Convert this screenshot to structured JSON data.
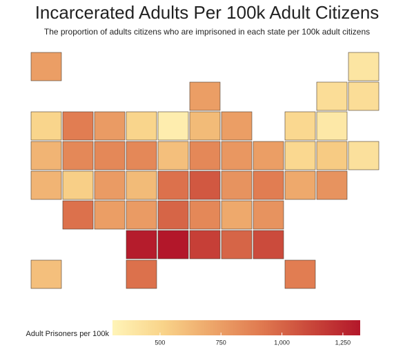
{
  "chart_data": {
    "type": "choropleth",
    "title": "Incarcerated Adults Per 100k Adult Citizens",
    "subtitle": "The proportion of adults citizens who are imprisoned in each state per 100k adult citizens",
    "values": [
      750,
      400,
      750,
      450,
      450,
      500,
      900,
      760,
      500,
      350,
      620,
      750,
      480,
      380,
      650,
      850,
      850,
      850,
      600,
      850,
      780,
      750,
      480,
      550,
      430,
      650,
      530,
      760,
      620,
      950,
      1050,
      800,
      900,
      700,
      800,
      950,
      750,
      760,
      1000,
      850,
      700,
      800,
      1300,
      1320,
      1150,
      1000,
      1100,
      600,
      950,
      900
    ],
    "colorbar": {
      "title": "Adult Prisoners per 100k",
      "lim": [
        305,
        1321
      ],
      "ticks": [
        500,
        750,
        {
          "value": 1000,
          "label": "1,000"
        },
        {
          "value": 1250,
          "label": "1,250"
        }
      ],
      "colors": [
        "#fff4b8",
        "#f9d48a",
        "#eda66a",
        "#e07a50",
        "#c9473a",
        "#b3172a"
      ]
    },
    "stroke": "#4a3a30"
  }
}
